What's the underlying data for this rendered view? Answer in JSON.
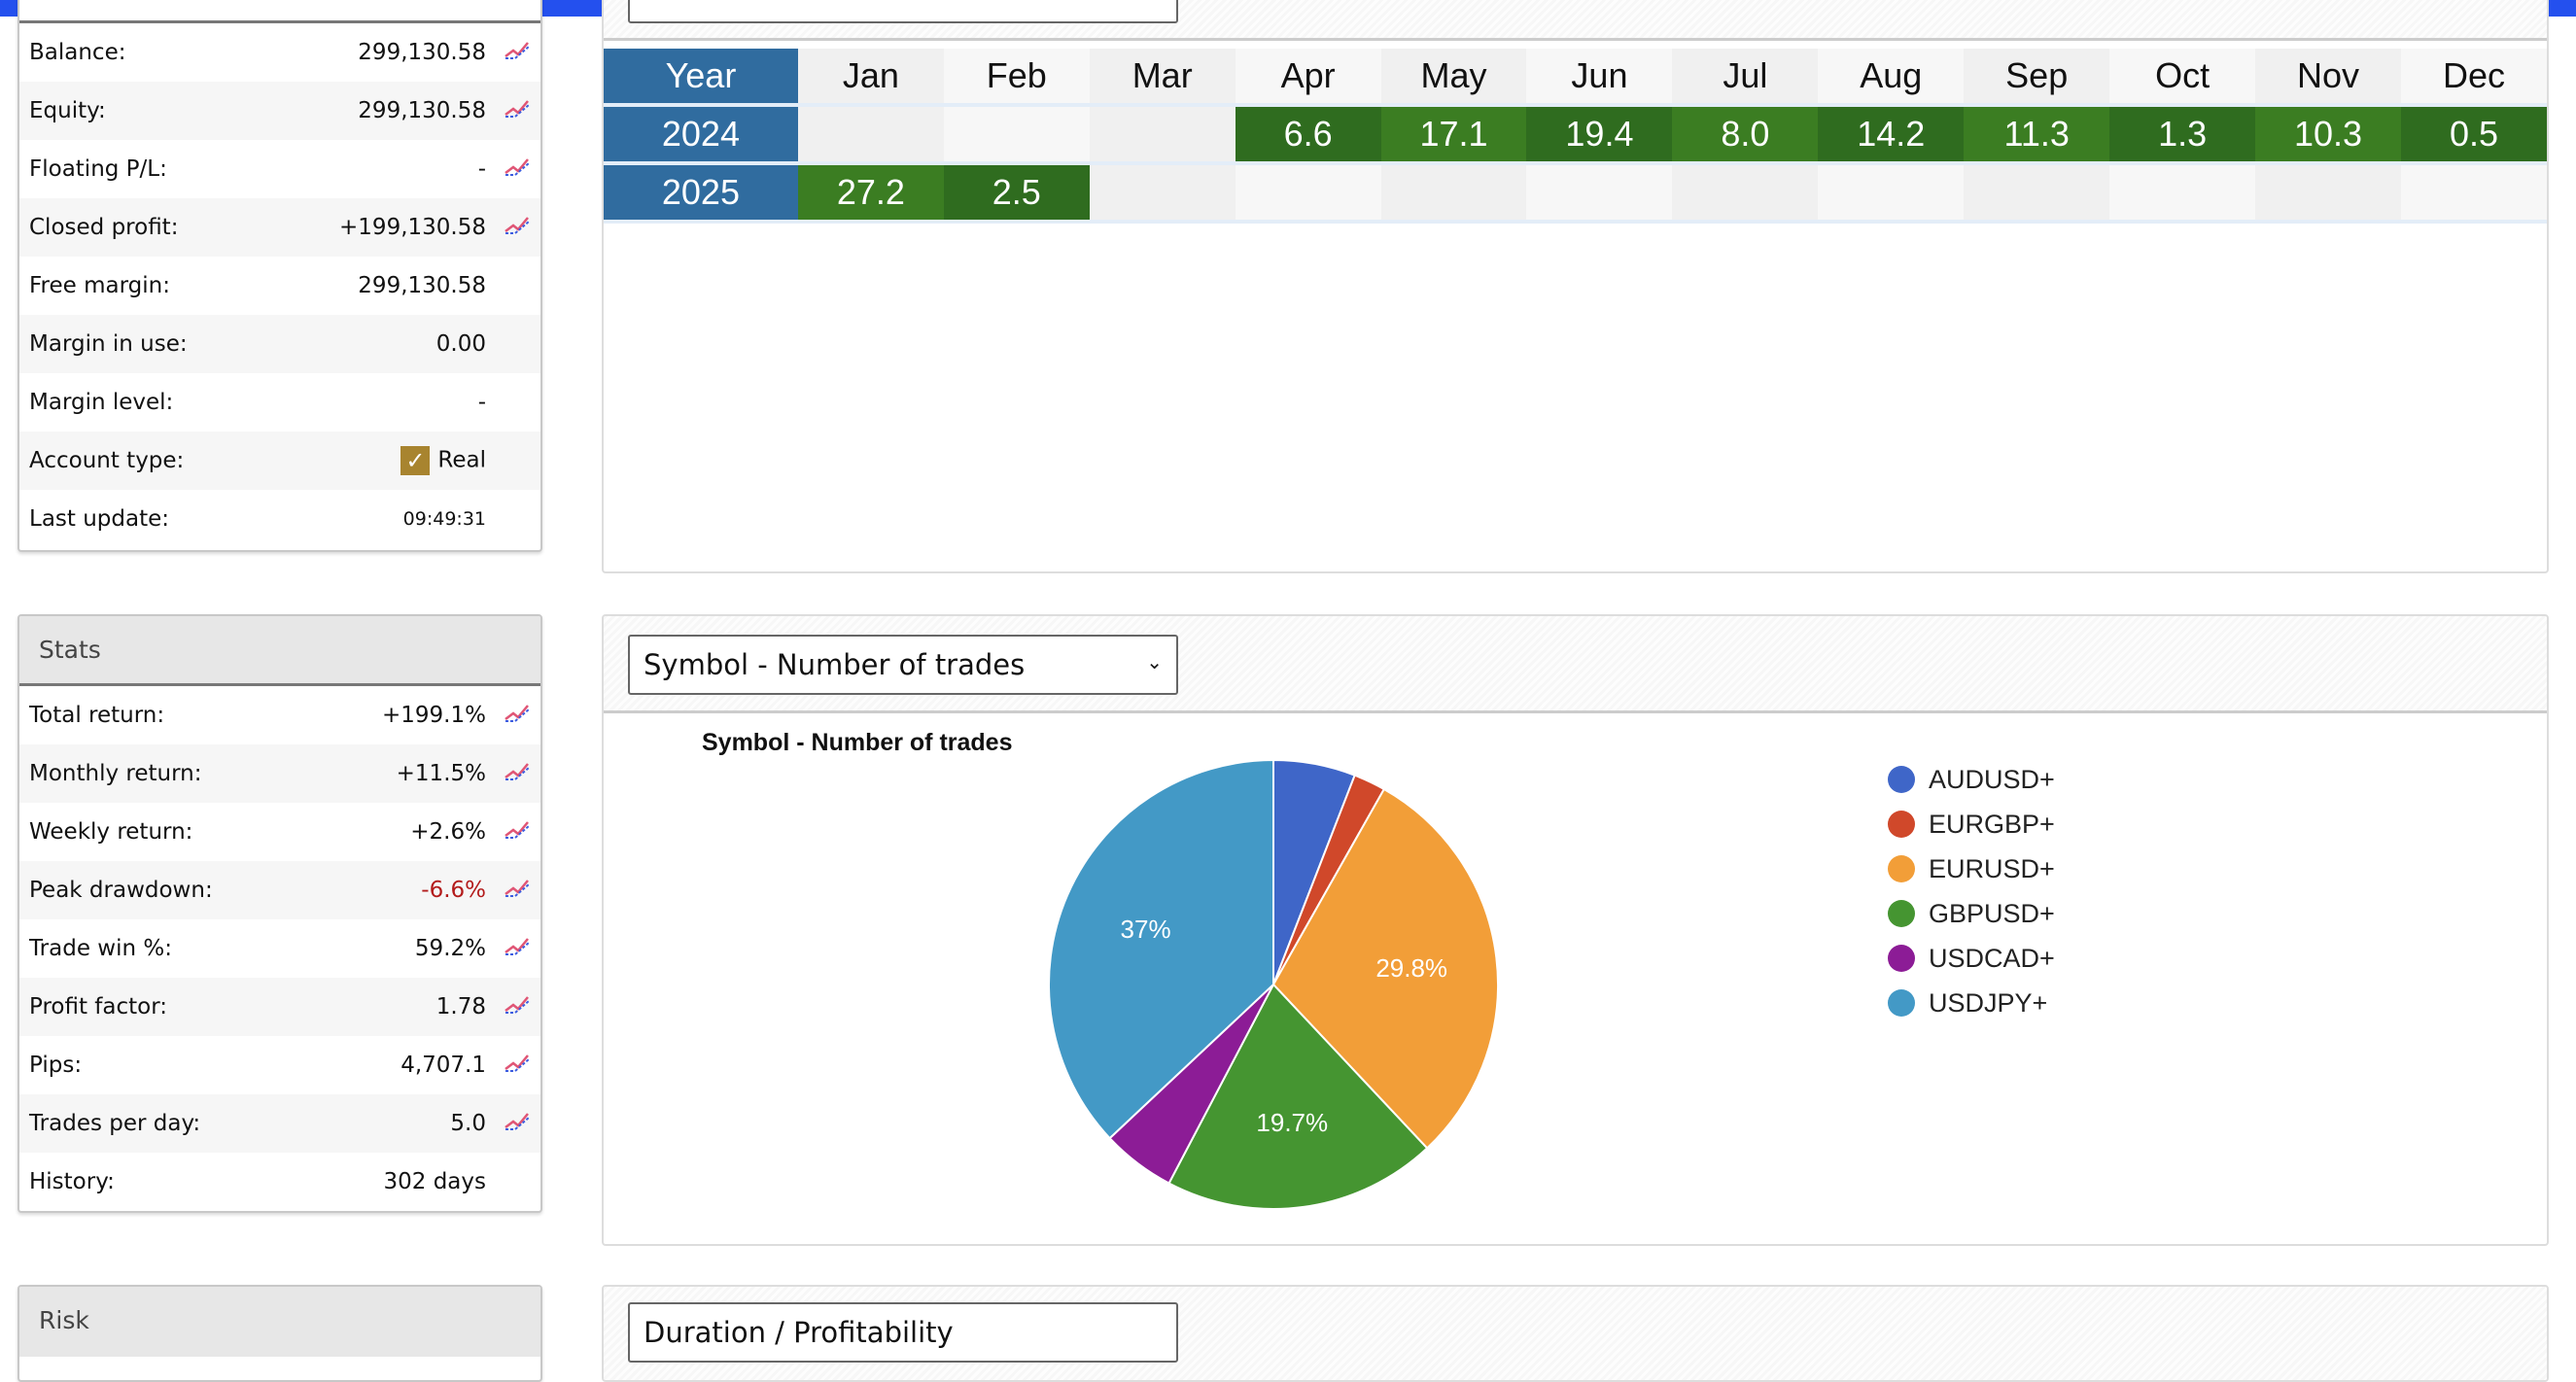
{
  "account": {
    "rows": [
      {
        "label": "Balance:",
        "value": "299,130.58",
        "chart": true
      },
      {
        "label": "Equity:",
        "value": "299,130.58",
        "chart": true
      },
      {
        "label": "Floating P/L:",
        "value": "-",
        "chart": true
      },
      {
        "label": "Closed profit:",
        "value": "+199,130.58",
        "chart": true
      },
      {
        "label": "Free margin:",
        "value": "299,130.58",
        "chart": false
      },
      {
        "label": "Margin in use:",
        "value": "0.00",
        "chart": false
      },
      {
        "label": "Margin level:",
        "value": "-",
        "chart": false
      },
      {
        "label": "Account type:",
        "value": "Real",
        "chart": false,
        "check": true
      },
      {
        "label": "Last update:",
        "value": "09:49:31",
        "chart": false,
        "small": true
      }
    ]
  },
  "stats": {
    "title": "Stats",
    "rows": [
      {
        "label": "Total return:",
        "value": "+199.1%",
        "chart": true
      },
      {
        "label": "Monthly return:",
        "value": "+11.5%",
        "chart": true
      },
      {
        "label": "Weekly return:",
        "value": "+2.6%",
        "chart": true
      },
      {
        "label": "Peak drawdown:",
        "value": "-6.6%",
        "chart": true,
        "neg": true
      },
      {
        "label": "Trade win %:",
        "value": "59.2%",
        "chart": true
      },
      {
        "label": "Profit factor:",
        "value": "1.78",
        "chart": true
      },
      {
        "label": "Pips:",
        "value": "4,707.1",
        "chart": true
      },
      {
        "label": "Trades per day:",
        "value": "5.0",
        "chart": true
      },
      {
        "label": "History:",
        "value": "302 days",
        "chart": false
      }
    ]
  },
  "risk": {
    "title": "Risk"
  },
  "monthly": {
    "header": [
      "Year",
      "Jan",
      "Feb",
      "Mar",
      "Apr",
      "May",
      "Jun",
      "Jul",
      "Aug",
      "Sep",
      "Oct",
      "Nov",
      "Dec"
    ],
    "rows": [
      {
        "year": "2024",
        "values": [
          "",
          "",
          "",
          "6.6",
          "17.1",
          "19.4",
          "8.0",
          "14.2",
          "11.3",
          "1.3",
          "10.3",
          "0.5"
        ]
      },
      {
        "year": "2025",
        "values": [
          "27.2",
          "2.5",
          "",
          "",
          "",
          "",
          "",
          "",
          "",
          "",
          "",
          ""
        ]
      }
    ]
  },
  "pie_panel": {
    "select": "Symbol - Number of trades"
  },
  "bottom_panel": {
    "select": "Duration / Profitability"
  },
  "chart_data": {
    "type": "pie",
    "title": "Symbol - Number of trades",
    "labels": [
      "AUDUSD+",
      "EURGBP+",
      "EURUSD+",
      "GBPUSD+",
      "USDCAD+",
      "USDJPY+"
    ],
    "values": [
      5.9,
      2.3,
      29.8,
      19.7,
      5.3,
      37.0
    ],
    "slice_labels": [
      "",
      "",
      "29.8%",
      "19.7%",
      "",
      "37%"
    ],
    "colors": [
      "#3f66c8",
      "#d0482a",
      "#f29e38",
      "#459531",
      "#8c1c96",
      "#4399c6"
    ],
    "legend": "right"
  }
}
